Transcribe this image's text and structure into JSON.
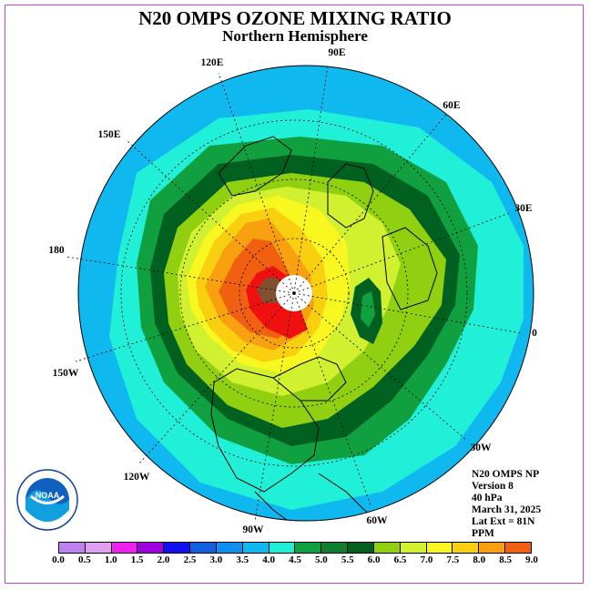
{
  "title": "N20 OMPS OZONE MIXING RATIO",
  "subtitle": "Northern Hemisphere",
  "info": {
    "product": "N20 OMPS NP",
    "version": "Version 8",
    "level": "40 hPa",
    "date": "March 31, 2025",
    "lat_ext": "Lat Ext = 81N",
    "units": "PPM"
  },
  "longitude_labels": [
    "90E",
    "60E",
    "30E",
    "0",
    "30W",
    "60W",
    "90W",
    "120W",
    "150W",
    "180",
    "150E",
    "120E"
  ],
  "colorbar": {
    "ticks": [
      "0.0",
      "0.5",
      "1.0",
      "1.5",
      "2.0",
      "2.5",
      "3.0",
      "3.5",
      "4.0",
      "4.5",
      "5.0",
      "5.5",
      "6.0",
      "6.5",
      "7.0",
      "7.5",
      "8.0",
      "8.5",
      "9.0"
    ],
    "colors": [
      "#c080f0",
      "#e0a0f0",
      "#f020f0",
      "#a000e0",
      "#1010f0",
      "#1060e0",
      "#1090f0",
      "#10b8f0",
      "#20f0d8",
      "#10a040",
      "#108030",
      "#006020",
      "#90d010",
      "#d0f030",
      "#f8f820",
      "#f8d010",
      "#f8a010",
      "#f06010",
      "#f01010",
      "#805030"
    ]
  },
  "logo": {
    "text": "NOAA",
    "ring_text": "NATIONAL OCEANIC AND ATMOSPHERIC ADMINISTRATION · U.S. DEPARTMENT OF COMMERCE"
  }
}
